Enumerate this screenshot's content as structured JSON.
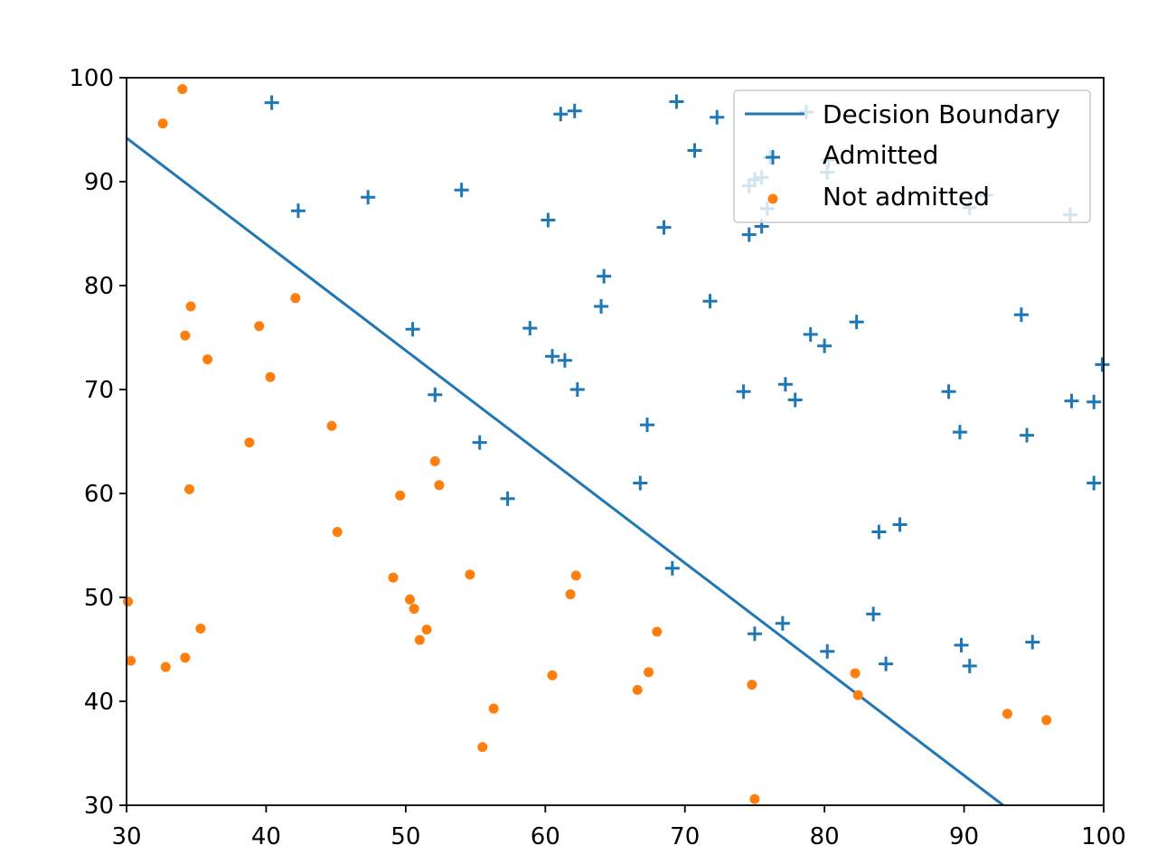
{
  "chart_data": {
    "type": "scatter",
    "title": "",
    "xlabel": "",
    "ylabel": "",
    "xlim": [
      30,
      100
    ],
    "ylim": [
      30,
      100
    ],
    "xticks": [
      "30",
      "40",
      "50",
      "60",
      "70",
      "80",
      "90",
      "100"
    ],
    "yticks": [
      "30",
      "40",
      "50",
      "60",
      "70",
      "80",
      "90",
      "100"
    ],
    "grid": false,
    "legend_position": "top-right",
    "line": {
      "name": "Decision Boundary",
      "color": "#1f77b4",
      "x": [
        30,
        92.8
      ],
      "y": [
        94.2,
        30
      ]
    },
    "series": [
      {
        "name": "Admitted",
        "marker": "plus",
        "color": "#1f77b4",
        "points": [
          [
            40.4,
            97.6
          ],
          [
            42.3,
            87.2
          ],
          [
            47.3,
            88.5
          ],
          [
            54.0,
            89.2
          ],
          [
            60.2,
            86.3
          ],
          [
            61.1,
            96.5
          ],
          [
            62.1,
            96.8
          ],
          [
            69.4,
            97.7
          ],
          [
            72.3,
            96.2
          ],
          [
            70.7,
            93.0
          ],
          [
            78.7,
            96.7
          ],
          [
            74.6,
            89.6
          ],
          [
            75.0,
            90.2
          ],
          [
            75.5,
            90.4
          ],
          [
            76.1,
            92.3
          ],
          [
            80.3,
            92.1
          ],
          [
            80.2,
            90.9
          ],
          [
            75.9,
            87.4
          ],
          [
            75.5,
            85.7
          ],
          [
            74.6,
            84.9
          ],
          [
            68.5,
            85.6
          ],
          [
            91.6,
            88.7
          ],
          [
            90.4,
            87.5
          ],
          [
            97.6,
            86.8
          ],
          [
            64.2,
            80.9
          ],
          [
            64.0,
            78.0
          ],
          [
            71.8,
            78.5
          ],
          [
            50.5,
            75.8
          ],
          [
            58.9,
            75.9
          ],
          [
            60.5,
            73.2
          ],
          [
            61.4,
            72.8
          ],
          [
            62.3,
            70.0
          ],
          [
            52.1,
            69.5
          ],
          [
            55.3,
            64.9
          ],
          [
            57.3,
            59.5
          ],
          [
            67.3,
            66.6
          ],
          [
            66.8,
            61.0
          ],
          [
            74.2,
            69.8
          ],
          [
            77.2,
            70.5
          ],
          [
            77.9,
            69.0
          ],
          [
            79.0,
            75.3
          ],
          [
            80.0,
            74.2
          ],
          [
            82.3,
            76.5
          ],
          [
            94.1,
            77.2
          ],
          [
            88.9,
            69.8
          ],
          [
            89.7,
            65.9
          ],
          [
            94.5,
            65.6
          ],
          [
            97.7,
            68.9
          ],
          [
            99.3,
            68.8
          ],
          [
            99.9,
            72.4
          ],
          [
            99.3,
            61.0
          ],
          [
            83.9,
            56.3
          ],
          [
            85.4,
            57.0
          ],
          [
            69.1,
            52.8
          ],
          [
            77.0,
            47.5
          ],
          [
            75.0,
            46.5
          ],
          [
            80.2,
            44.8
          ],
          [
            83.5,
            48.4
          ],
          [
            84.4,
            43.6
          ],
          [
            89.8,
            45.4
          ],
          [
            90.4,
            43.4
          ],
          [
            94.9,
            45.7
          ]
        ]
      },
      {
        "name": "Not admitted",
        "marker": "dot",
        "color": "#ff7f0e",
        "points": [
          [
            34.0,
            98.9
          ],
          [
            32.6,
            95.6
          ],
          [
            42.1,
            78.8
          ],
          [
            34.6,
            78.0
          ],
          [
            34.2,
            75.2
          ],
          [
            39.5,
            76.1
          ],
          [
            35.8,
            72.9
          ],
          [
            40.3,
            71.2
          ],
          [
            44.7,
            66.5
          ],
          [
            38.8,
            64.9
          ],
          [
            34.5,
            60.4
          ],
          [
            30.1,
            49.6
          ],
          [
            30.3,
            43.9
          ],
          [
            32.8,
            43.3
          ],
          [
            34.2,
            44.2
          ],
          [
            35.3,
            47.0
          ],
          [
            45.1,
            56.3
          ],
          [
            49.6,
            59.8
          ],
          [
            52.1,
            63.1
          ],
          [
            52.4,
            60.8
          ],
          [
            49.1,
            51.9
          ],
          [
            50.3,
            49.8
          ],
          [
            50.6,
            48.9
          ],
          [
            51.5,
            46.9
          ],
          [
            51.0,
            45.9
          ],
          [
            54.6,
            52.2
          ],
          [
            62.2,
            52.1
          ],
          [
            61.8,
            50.3
          ],
          [
            60.5,
            42.5
          ],
          [
            55.5,
            35.6
          ],
          [
            56.3,
            39.3
          ],
          [
            66.6,
            41.1
          ],
          [
            67.4,
            42.8
          ],
          [
            68.0,
            46.7
          ],
          [
            74.8,
            41.6
          ],
          [
            75.0,
            30.6
          ],
          [
            82.2,
            42.7
          ],
          [
            82.4,
            40.6
          ],
          [
            93.1,
            38.8
          ],
          [
            95.9,
            38.2
          ]
        ]
      }
    ]
  }
}
